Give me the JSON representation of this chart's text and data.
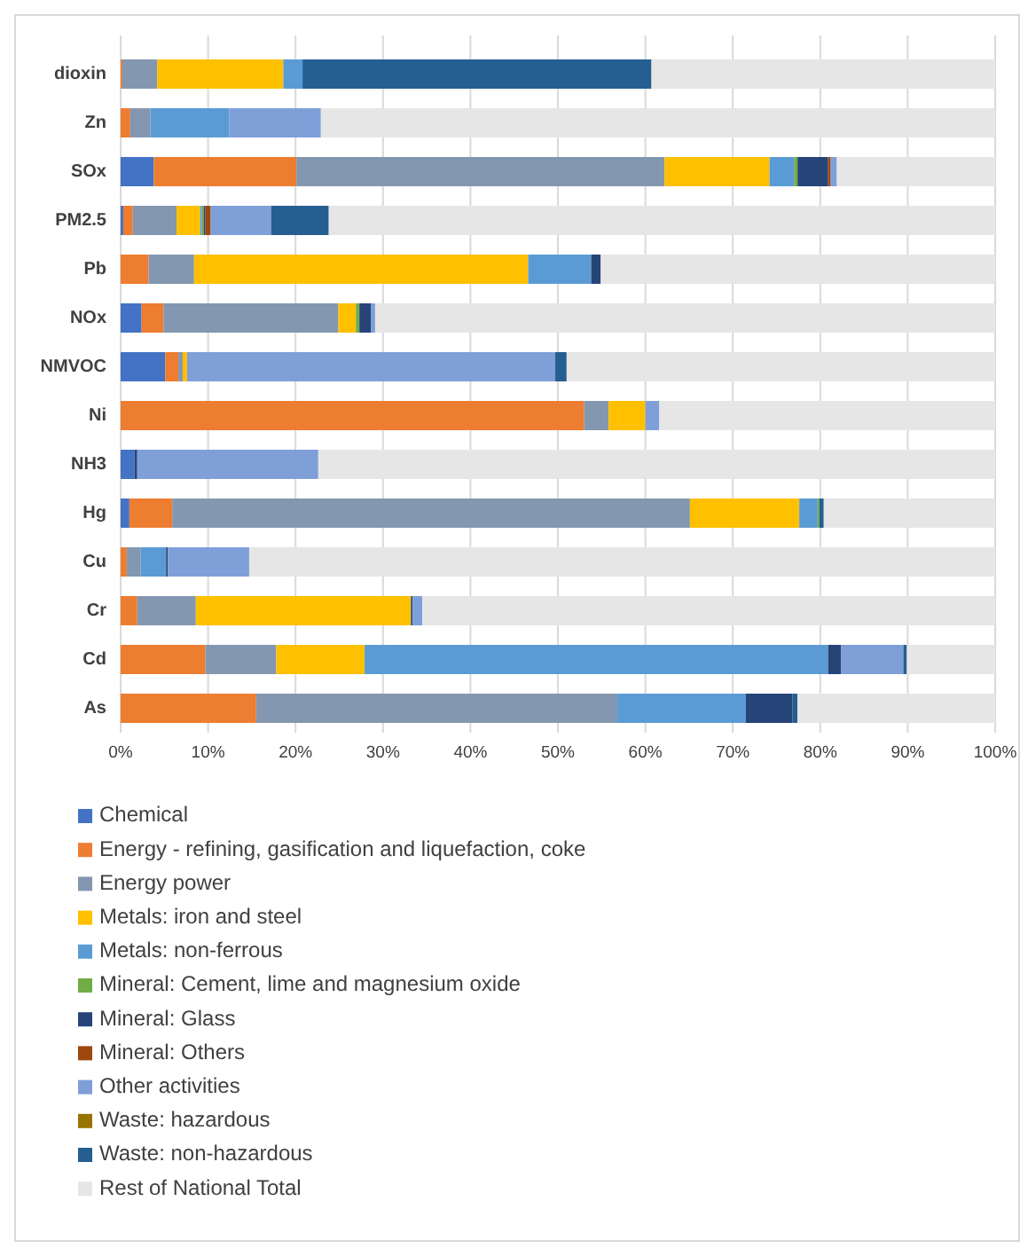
{
  "chart_data": {
    "type": "bar",
    "orientation": "horizontal",
    "stacked": true,
    "categories": [
      "dioxin",
      "Zn",
      "SOx",
      "PM2.5",
      "Pb",
      "NOx",
      "NMVOC",
      "Ni",
      "NH3",
      "Hg",
      "Cu",
      "Cr",
      "Cd",
      "As"
    ],
    "series": [
      {
        "name": "Chemical",
        "color": "#4472c4",
        "values": [
          0,
          0,
          3.8,
          0.3,
          0,
          2.4,
          5.1,
          0,
          1.6,
          1.0,
          0,
          0,
          0,
          0
        ]
      },
      {
        "name": "Energy - refining, gasification and liquefaction, coke",
        "color": "#ed7d31",
        "values": [
          0.2,
          1.1,
          16.3,
          1.1,
          3.2,
          2.5,
          1.5,
          53.0,
          0,
          4.9,
          0.7,
          1.9,
          9.7,
          15.5
        ]
      },
      {
        "name": "Energy power",
        "color": "#8497b0",
        "values": [
          4.0,
          2.3,
          42.1,
          5.0,
          5.2,
          20.0,
          0.5,
          2.8,
          0,
          59.2,
          1.6,
          6.7,
          8.1,
          41.3
        ]
      },
      {
        "name": "Metals: iron and steel",
        "color": "#ffc000",
        "values": [
          14.4,
          0,
          12.0,
          2.7,
          38.2,
          2.0,
          0.5,
          4.2,
          0,
          12.5,
          0,
          24.6,
          10.1,
          0
        ]
      },
      {
        "name": "Metals: non-ferrous",
        "color": "#5b9bd5",
        "values": [
          2.2,
          9.0,
          2.8,
          0.2,
          7.2,
          0,
          0,
          0,
          0,
          2.1,
          2.9,
          0,
          53.0,
          14.7
        ]
      },
      {
        "name": "Mineral: Cement, lime and magnesium oxide",
        "color": "#70ad47",
        "values": [
          0,
          0,
          0.4,
          0.2,
          0,
          0.4,
          0,
          0,
          0,
          0.2,
          0,
          0,
          0,
          0
        ]
      },
      {
        "name": "Mineral: Glass",
        "color": "#264478",
        "values": [
          0,
          0,
          3.5,
          0.2,
          1.1,
          1.3,
          0,
          0,
          0.3,
          0,
          0.2,
          0.2,
          1.5,
          5.3
        ]
      },
      {
        "name": "Mineral: Others",
        "color": "#9e480e",
        "values": [
          0,
          0,
          0.3,
          0.6,
          0,
          0,
          0,
          0,
          0,
          0,
          0,
          0,
          0,
          0
        ]
      },
      {
        "name": "Other activities",
        "color": "#7f9fd9",
        "values": [
          0,
          10.5,
          0.7,
          6.9,
          0,
          0.5,
          42.1,
          1.6,
          20.7,
          0,
          9.3,
          1.1,
          7.1,
          0
        ]
      },
      {
        "name": "Waste: hazardous",
        "color": "#997300",
        "values": [
          0,
          0,
          0,
          0,
          0,
          0,
          0,
          0,
          0,
          0,
          0,
          0,
          0,
          0
        ]
      },
      {
        "name": "Waste: non-hazardous",
        "color": "#255e91",
        "values": [
          39.9,
          0,
          0,
          6.6,
          0,
          0,
          1.3,
          0,
          0,
          0.5,
          0,
          0,
          0.4,
          0.6
        ]
      },
      {
        "name": "Rest of National Total",
        "color": "#e6e6e6",
        "values": [
          39.3,
          77.1,
          18.1,
          76.2,
          45.1,
          70.9,
          49.0,
          38.4,
          77.4,
          19.6,
          85.3,
          65.5,
          10.1,
          22.6
        ]
      }
    ],
    "xlim": [
      0,
      100
    ],
    "xticks": [
      {
        "value": 0,
        "label": "0%"
      },
      {
        "value": 10,
        "label": "10%"
      },
      {
        "value": 20,
        "label": "20%"
      },
      {
        "value": 30,
        "label": "30%"
      },
      {
        "value": 40,
        "label": "40%"
      },
      {
        "value": 50,
        "label": "50%"
      },
      {
        "value": 60,
        "label": "60%"
      },
      {
        "value": 70,
        "label": "70%"
      },
      {
        "value": 80,
        "label": "80%"
      },
      {
        "value": 90,
        "label": "90%"
      },
      {
        "value": 100,
        "label": "100%"
      }
    ],
    "grid": "x",
    "legend": "bottom"
  }
}
